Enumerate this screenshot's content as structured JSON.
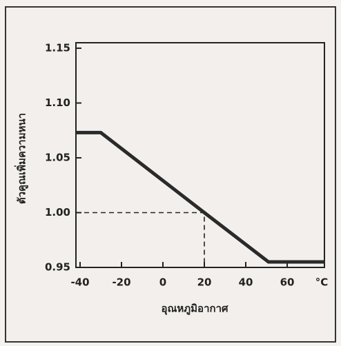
{
  "chart_data": {
    "type": "line",
    "y_label": "ตัวคูณเพิ่มความหนา",
    "x_label": "อุณหภูมิอากาศ",
    "x_unit": "°C",
    "x": [
      -42,
      -30,
      20,
      51,
      78
    ],
    "values": [
      1.073,
      1.073,
      1.0,
      0.955,
      0.955
    ],
    "color": "#2a2a2a",
    "xlim": [
      -42,
      78
    ],
    "ylim": [
      0.95,
      1.155
    ],
    "xticks": [
      -40,
      -20,
      0,
      20,
      40,
      60
    ],
    "yticks": [
      {
        "value": 0.95,
        "label": "0.95"
      },
      {
        "value": 1.0,
        "label": "1.00"
      },
      {
        "value": 1.05,
        "label": "1.05"
      },
      {
        "value": 1.1,
        "label": "1.10"
      },
      {
        "value": 1.15,
        "label": "1.15"
      }
    ],
    "reference_point": 2
  }
}
